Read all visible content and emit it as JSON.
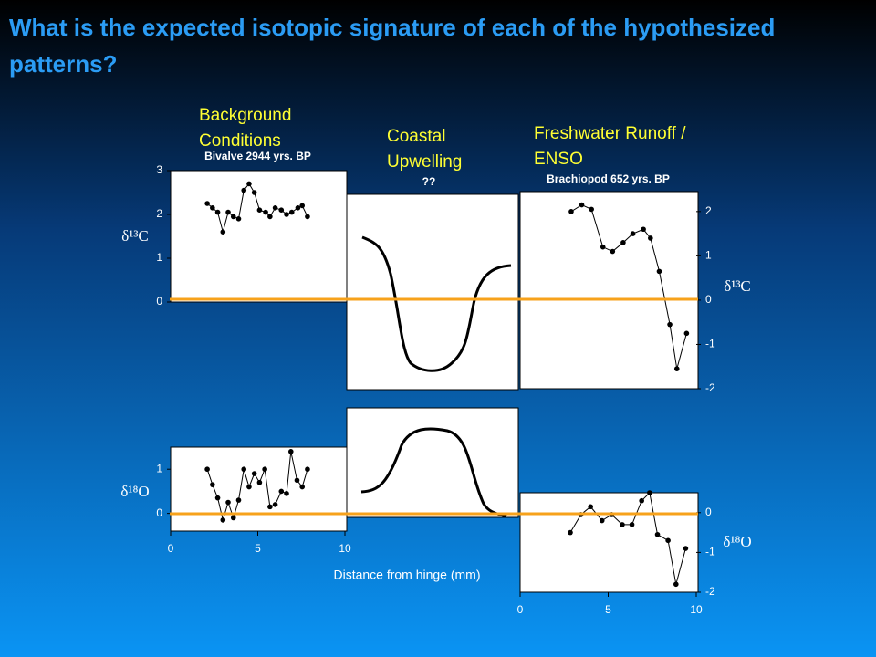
{
  "slide": {
    "title": "What is the expected isotopic signature of each of the hypothesized patterns?",
    "headings": [
      "Background Conditions",
      "Coastal Upwelling",
      "Freshwater Runoff / ENSO"
    ],
    "annotation": "??",
    "xlabel": "Distance from hinge (mm)"
  },
  "chart_data": [
    {
      "type": "line",
      "title": "Bivalve 2944 yrs. BP",
      "ylabel": "δ¹³C",
      "color": "#000000",
      "x": [
        2.1,
        2.4,
        2.7,
        3.0,
        3.3,
        3.6,
        3.9,
        4.2,
        4.5,
        4.8,
        5.1,
        5.45,
        5.7,
        6.0,
        6.35,
        6.65,
        6.95,
        7.3,
        7.55,
        7.85
      ],
      "values": [
        2.25,
        2.15,
        2.05,
        1.6,
        2.05,
        1.95,
        1.9,
        2.55,
        2.7,
        2.5,
        2.1,
        2.05,
        1.95,
        2.15,
        2.1,
        2.0,
        2.05,
        2.15,
        2.2,
        1.95
      ],
      "xlim": [
        0,
        10
      ],
      "ylim": [
        0,
        3
      ],
      "yticks": [
        0,
        1,
        2,
        3
      ]
    },
    {
      "type": "line",
      "ylabel": "δ¹⁸O",
      "color": "#000000",
      "x": [
        2.1,
        2.4,
        2.7,
        3.0,
        3.3,
        3.6,
        3.9,
        4.2,
        4.5,
        4.8,
        5.1,
        5.4,
        5.7,
        6.0,
        6.35,
        6.65,
        6.9,
        7.25,
        7.55,
        7.85
      ],
      "values": [
        1.0,
        0.65,
        0.35,
        -0.15,
        0.25,
        -0.1,
        0.3,
        1.0,
        0.6,
        0.9,
        0.7,
        1.0,
        0.15,
        0.2,
        0.5,
        0.45,
        1.4,
        0.75,
        0.6,
        1.0
      ],
      "xlim": [
        0,
        10
      ],
      "ylim": [
        -0.4,
        1.5
      ],
      "xticks": [
        0,
        5,
        10
      ],
      "yticks": [
        0,
        1
      ]
    },
    {
      "type": "line",
      "title": "Brachiopod 652 yrs. BP",
      "ylabel": "δ¹³C",
      "color": "#000000",
      "x": [
        2.9,
        3.5,
        4.05,
        4.7,
        5.25,
        5.85,
        6.4,
        7.0,
        7.4,
        7.9,
        8.5,
        8.9,
        9.45
      ],
      "values": [
        2.0,
        2.15,
        2.05,
        1.2,
        1.1,
        1.3,
        1.5,
        1.6,
        1.4,
        0.65,
        -0.55,
        -1.55,
        -0.75
      ],
      "xlim": [
        0,
        10
      ],
      "ylim": [
        -2,
        2.45
      ],
      "yticks": [
        -2,
        -1,
        0,
        1,
        2
      ]
    },
    {
      "type": "line",
      "ylabel": "δ¹⁸O",
      "color": "#000000",
      "x": [
        2.85,
        3.45,
        4.0,
        4.65,
        5.2,
        5.8,
        6.35,
        6.9,
        7.35,
        7.8,
        8.4,
        8.85,
        9.4
      ],
      "values": [
        -0.5,
        -0.05,
        0.15,
        -0.2,
        -0.05,
        -0.3,
        -0.3,
        0.3,
        0.5,
        -0.55,
        -0.7,
        -1.8,
        -0.9
      ],
      "xlim": [
        0,
        10
      ],
      "ylim": [
        -2,
        0.5
      ],
      "xticks": [
        0,
        5,
        10
      ],
      "yticks": [
        -2,
        -1,
        0
      ]
    }
  ]
}
